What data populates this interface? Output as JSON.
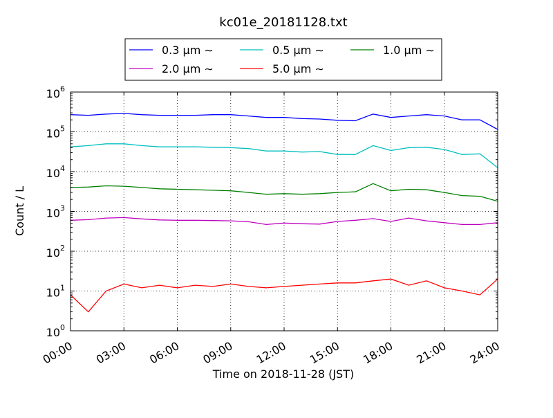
{
  "chart_data": {
    "type": "line",
    "title": "kc01e_20181128.txt",
    "xlabel": "Time on 2018-11-28 (JST)",
    "ylabel": "Count / L",
    "yscale": "log",
    "ylim": [
      1,
      1000000
    ],
    "xlim": [
      "00:00",
      "24:00"
    ],
    "x_tick_labels": [
      "00:00",
      "03:00",
      "06:00",
      "09:00",
      "12:00",
      "15:00",
      "18:00",
      "21:00",
      "24:00"
    ],
    "y_tick_labels": [
      {
        "base": "10",
        "exp": "0"
      },
      {
        "base": "10",
        "exp": "1"
      },
      {
        "base": "10",
        "exp": "2"
      },
      {
        "base": "10",
        "exp": "3"
      },
      {
        "base": "10",
        "exp": "4"
      },
      {
        "base": "10",
        "exp": "5"
      },
      {
        "base": "10",
        "exp": "6"
      }
    ],
    "grid": true,
    "legend_position": "top-center",
    "x": [
      "00:00",
      "01:00",
      "02:00",
      "03:00",
      "04:00",
      "05:00",
      "06:00",
      "07:00",
      "08:00",
      "09:00",
      "10:00",
      "11:00",
      "12:00",
      "13:00",
      "14:00",
      "15:00",
      "16:00",
      "17:00",
      "18:00",
      "19:00",
      "20:00",
      "21:00",
      "22:00",
      "23:00",
      "24:00"
    ],
    "series": [
      {
        "name": "0.3 μm ∼",
        "color": "#0000ff",
        "values": [
          270000,
          260000,
          280000,
          290000,
          270000,
          260000,
          260000,
          260000,
          270000,
          270000,
          250000,
          230000,
          230000,
          215000,
          210000,
          195000,
          190000,
          280000,
          230000,
          250000,
          270000,
          250000,
          200000,
          200000,
          115000
        ]
      },
      {
        "name": "0.5 μm ∼",
        "color": "#00bfbf",
        "values": [
          42000,
          45000,
          50000,
          50000,
          45000,
          42000,
          42000,
          42000,
          41000,
          40000,
          38000,
          33000,
          33000,
          31000,
          32000,
          27000,
          27000,
          45000,
          34000,
          40000,
          41000,
          36000,
          27000,
          28000,
          12500
        ]
      },
      {
        "name": "1.0 μm ∼",
        "color": "#008000",
        "values": [
          4000,
          4100,
          4400,
          4300,
          4000,
          3700,
          3600,
          3500,
          3400,
          3300,
          3000,
          2700,
          2800,
          2700,
          2800,
          3000,
          3100,
          5000,
          3300,
          3600,
          3500,
          3000,
          2500,
          2400,
          1800
        ]
      },
      {
        "name": "2.0 μm ∼",
        "color": "#bf00bf",
        "values": [
          600,
          620,
          680,
          700,
          650,
          610,
          600,
          600,
          590,
          580,
          550,
          470,
          510,
          490,
          480,
          560,
          600,
          660,
          560,
          680,
          580,
          520,
          470,
          470,
          520
        ]
      },
      {
        "name": "5.0 μm ∼",
        "color": "#ff0000",
        "values": [
          8,
          3,
          10,
          15,
          12,
          14,
          12,
          14,
          13,
          15,
          13,
          12,
          13,
          14,
          15,
          16,
          16,
          18,
          20,
          14,
          18,
          12,
          10,
          8,
          20
        ]
      }
    ]
  }
}
